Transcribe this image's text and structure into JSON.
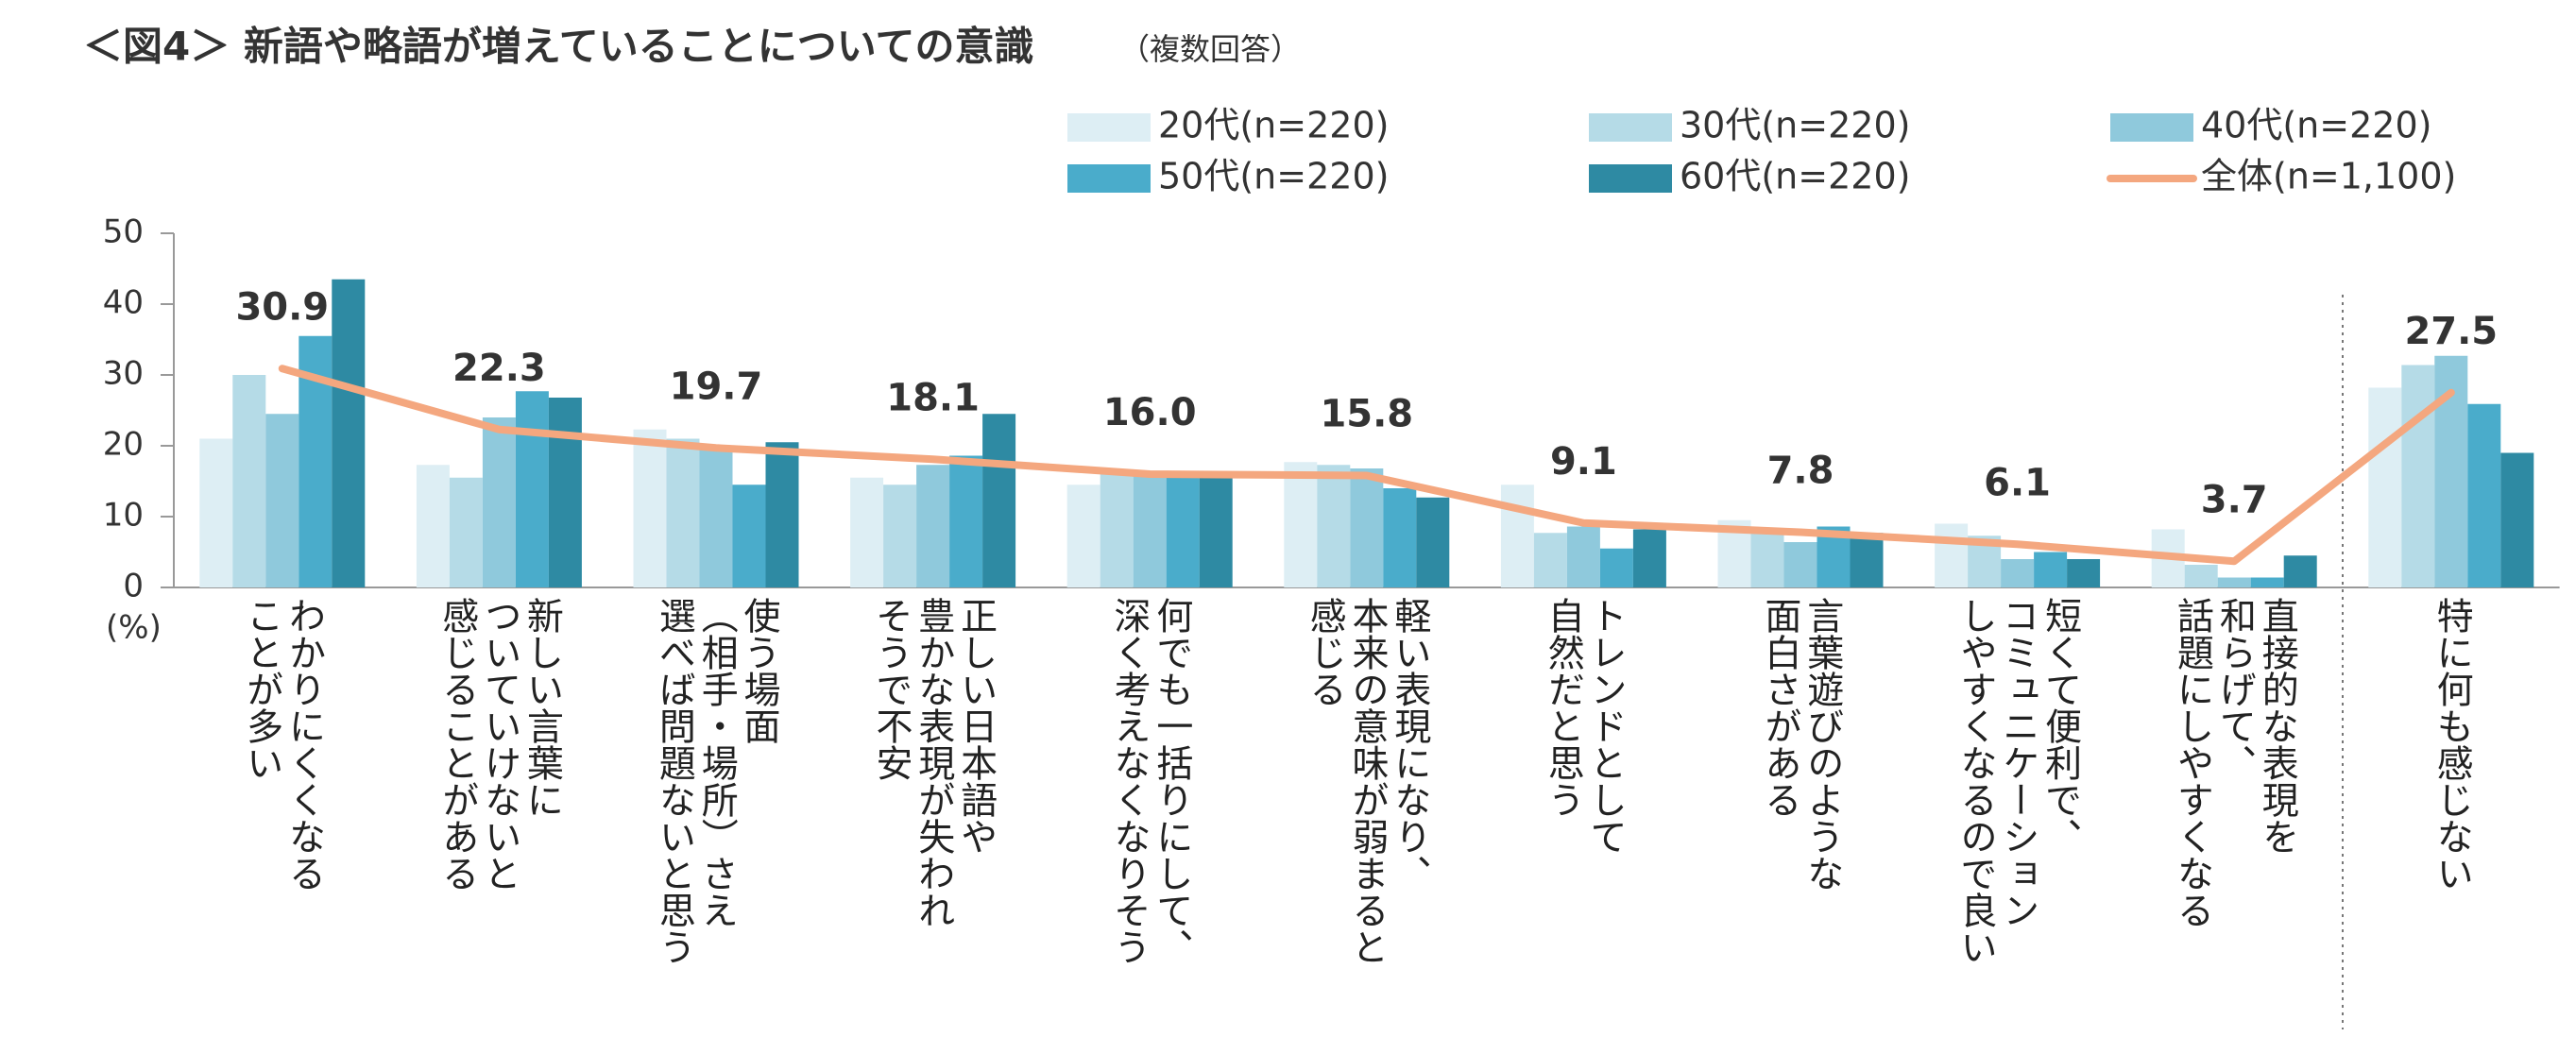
{
  "chart_data": {
    "type": "bar",
    "title": "＜図4＞ 新語や略語が増えていることについての意識",
    "subtitle": "（複数回答）",
    "y_label": "(%)",
    "categories": [
      "わかりにくくなる\nことが多い",
      "新しい言葉に\nついていけないと\n感じることがある",
      "使う場面\n（相手・場所）さえ\n選べば問題ないと思う",
      "正しい日本語や\n豊かな表現が失われ\nそうで不安",
      "何でも一括りにして、\n深く考えなくなりそう",
      "軽い表現になり、\n本来の意味が弱まると\n感じる",
      "トレンドとして\n自然だと思う",
      "言葉遊びのような\n面白さがある",
      "短くて便利で、\nコミュニケーション\nしやすくなるので良い",
      "直接的な表現を\n和らげて、\n話題にしやすくなる",
      "特に何も感じない"
    ],
    "series": [
      {
        "name": "20代(n=220)",
        "color": "#ddeef4",
        "values": [
          21,
          17.3,
          22.3,
          15.5,
          14.5,
          17.7,
          14.5,
          9.5,
          9,
          8.2,
          28.2
        ]
      },
      {
        "name": "30代(n=220)",
        "color": "#b5dbe7",
        "values": [
          30,
          15.5,
          21,
          14.5,
          16,
          17.3,
          7.7,
          8,
          7.3,
          3.2,
          31.4
        ]
      },
      {
        "name": "40代(n=220)",
        "color": "#8fc9dc",
        "values": [
          24.5,
          24,
          20,
          17.3,
          16,
          16.8,
          8.6,
          6.4,
          4,
          1.4,
          32.7
        ]
      },
      {
        "name": "50代(n=220)",
        "color": "#4aaccb",
        "values": [
          35.5,
          27.7,
          14.5,
          18.6,
          16,
          14,
          5.5,
          8.6,
          5,
          1.4,
          25.9
        ]
      },
      {
        "name": "60代(n=220)",
        "color": "#2e8aa3",
        "values": [
          43.5,
          26.8,
          20.5,
          24.5,
          16,
          12.7,
          8.2,
          7.7,
          4,
          4.5,
          19
        ]
      },
      {
        "name": "全体(n=1,100)",
        "color": "#f4a77f",
        "type": "line",
        "values": [
          30.9,
          22.3,
          19.7,
          18.1,
          16.0,
          15.8,
          9.1,
          7.8,
          6.1,
          3.7,
          27.5
        ],
        "value_labels": [
          "30.9",
          "22.3",
          "19.7",
          "18.1",
          "16.0",
          "15.8",
          "9.1",
          "7.8",
          "6.1",
          "3.7",
          "27.5"
        ]
      }
    ],
    "ylim": [
      0,
      50
    ],
    "yticks": [
      0,
      10,
      20,
      30,
      40,
      50
    ],
    "grid": false
  }
}
